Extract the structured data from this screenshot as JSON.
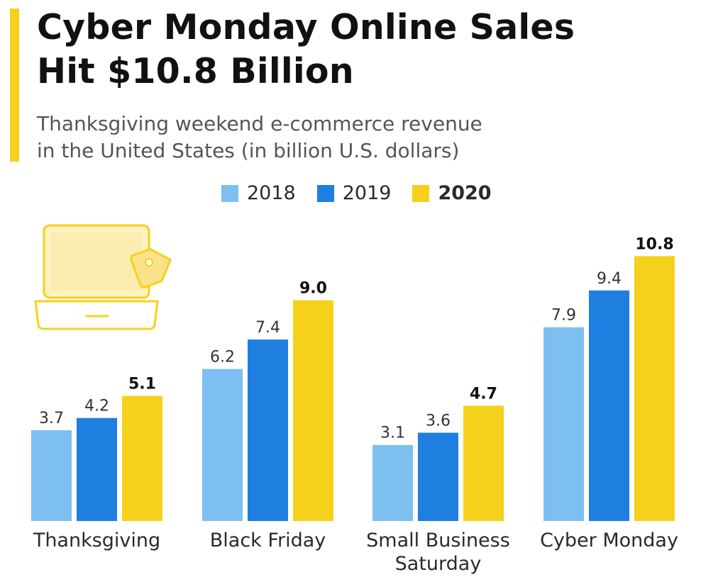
{
  "header": {
    "title_line1": "Cyber Monday Online Sales",
    "title_line2": "Hit $10.8 Billion",
    "subtitle_line1": "Thanksgiving weekend e-commerce revenue",
    "subtitle_line2": "in the United States (in billion U.S. dollars)"
  },
  "colors": {
    "accent": "#f6d11c",
    "series_2018": "#7dbff0",
    "series_2019": "#1e7fe0",
    "series_2020": "#f6d11c"
  },
  "icons": {
    "laptop": "laptop-with-price-tag-icon"
  },
  "chart_data": {
    "type": "bar",
    "title": "Cyber Monday Online Sales Hit $10.8 Billion",
    "subtitle": "Thanksgiving weekend e-commerce revenue in the United States (in billion U.S. dollars)",
    "xlabel": "",
    "ylabel": "",
    "ylim": [
      0,
      12
    ],
    "grid": false,
    "legend": "top-center",
    "categories": [
      [
        "Thanksgiving"
      ],
      [
        "Black Friday"
      ],
      [
        "Small Business",
        "Saturday"
      ],
      [
        "Cyber Monday"
      ]
    ],
    "series": [
      {
        "name": "2018",
        "values": [
          3.7,
          6.2,
          3.1,
          7.9
        ],
        "labels": [
          "3.7",
          "6.2",
          "3.1",
          "7.9"
        ]
      },
      {
        "name": "2019",
        "values": [
          4.2,
          7.4,
          3.6,
          9.4
        ],
        "labels": [
          "4.2",
          "7.4",
          "3.6",
          "9.4"
        ]
      },
      {
        "name": "2020",
        "values": [
          5.1,
          9.0,
          4.7,
          10.8
        ],
        "labels": [
          "5.1",
          "9.0",
          "4.7",
          "10.8"
        ]
      }
    ]
  }
}
